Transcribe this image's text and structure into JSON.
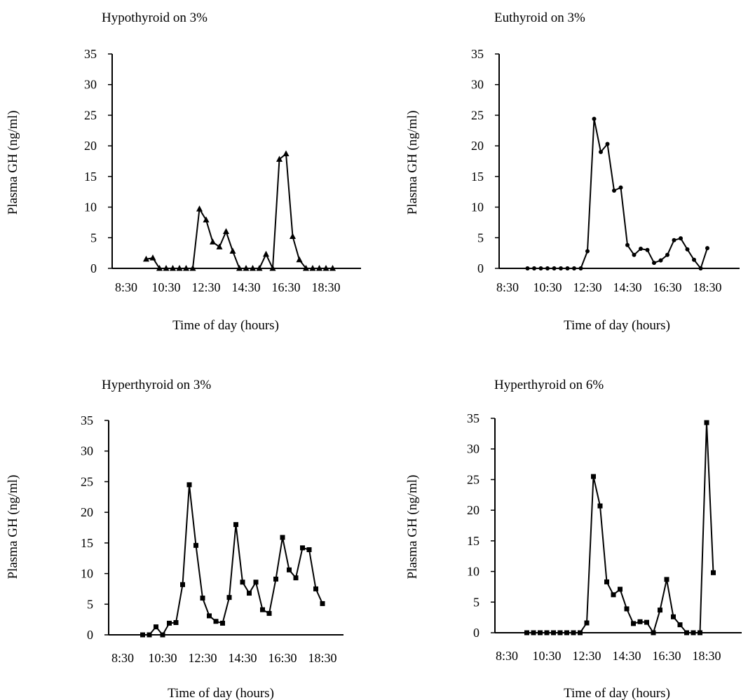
{
  "chart_data": [
    {
      "type": "line",
      "title": "Hypothyroid on 3%",
      "xlabel": "Time of day (hours)",
      "ylabel": "Plasma GH (ng/ml)",
      "ylim": [
        0,
        35
      ],
      "yticks": [
        "0",
        "5",
        "10",
        "15",
        "20",
        "25",
        "30",
        "35"
      ],
      "xticks": [
        "8:30",
        "10:30",
        "12:30",
        "14:30",
        "16:30",
        "18:30"
      ],
      "marker": "triangle",
      "series": [
        {
          "x": [
            "9:30",
            "9:50",
            "10:10",
            "10:30",
            "10:50",
            "11:10",
            "11:30",
            "11:50",
            "12:10",
            "12:30",
            "12:50",
            "13:10",
            "13:30",
            "13:50",
            "14:10",
            "14:30",
            "14:50",
            "15:10",
            "15:30",
            "15:50",
            "16:10",
            "16:30",
            "16:50",
            "17:10",
            "17:30",
            "17:50",
            "18:10",
            "18:30",
            "18:50"
          ],
          "values": [
            1.5,
            1.7,
            0,
            0,
            0,
            0,
            0,
            0,
            9.7,
            7.9,
            4.3,
            3.5,
            6.0,
            2.8,
            0,
            0,
            0,
            0,
            2.3,
            0,
            17.8,
            18.7,
            5.2,
            1.4,
            0,
            0,
            0,
            0,
            0
          ]
        }
      ]
    },
    {
      "type": "line",
      "title": "Euthyroid on 3%",
      "xlabel": "Time of day (hours)",
      "ylabel": "Plasma GH (ng/ml)",
      "ylim": [
        0,
        35
      ],
      "yticks": [
        "0",
        "5",
        "10",
        "15",
        "20",
        "25",
        "30",
        "35"
      ],
      "xticks": [
        "8:30",
        "10:30",
        "12:30",
        "14:30",
        "16:30",
        "18:30"
      ],
      "marker": "circle",
      "series": [
        {
          "x": [
            "9:30",
            "9:50",
            "10:10",
            "10:30",
            "10:50",
            "11:10",
            "11:30",
            "11:50",
            "12:10",
            "12:30",
            "12:50",
            "13:10",
            "13:30",
            "13:50",
            "14:10",
            "14:30",
            "14:50",
            "15:10",
            "15:30",
            "15:50",
            "16:10",
            "16:30",
            "16:50",
            "17:10",
            "17:30",
            "17:50",
            "18:10",
            "18:30"
          ],
          "values": [
            0,
            0,
            0,
            0,
            0,
            0,
            0,
            0,
            0,
            2.8,
            24.4,
            19.0,
            20.3,
            12.7,
            13.2,
            3.8,
            2.2,
            3.2,
            3.0,
            0.9,
            1.3,
            2.2,
            4.6,
            4.9,
            3.1,
            1.4,
            0,
            3.3
          ]
        }
      ]
    },
    {
      "type": "line",
      "title": "Hyperthyroid on 3%",
      "xlabel": "Time of day (hours)",
      "ylabel": "Plasma GH (ng/ml)",
      "ylim": [
        0,
        35
      ],
      "yticks": [
        "0",
        "5",
        "10",
        "15",
        "20",
        "25",
        "30",
        "35"
      ],
      "xticks": [
        "8:30",
        "10:30",
        "12:30",
        "14:30",
        "16:30",
        "18:30"
      ],
      "marker": "square",
      "series": [
        {
          "x": [
            "9:30",
            "9:50",
            "10:10",
            "10:30",
            "10:50",
            "11:10",
            "11:30",
            "11:50",
            "12:10",
            "12:30",
            "12:50",
            "13:10",
            "13:30",
            "13:50",
            "14:10",
            "14:30",
            "14:50",
            "15:10",
            "15:30",
            "15:50",
            "16:10",
            "16:30",
            "16:50",
            "17:10",
            "17:30",
            "17:50",
            "18:10",
            "18:30"
          ],
          "values": [
            0,
            0,
            1.3,
            0,
            1.9,
            2.0,
            8.2,
            24.5,
            14.6,
            6.0,
            3.1,
            2.2,
            1.9,
            6.1,
            18.0,
            8.6,
            6.8,
            8.6,
            4.1,
            3.5,
            9.1,
            15.9,
            10.6,
            9.3,
            14.2,
            13.9,
            7.5,
            5.1
          ]
        }
      ]
    },
    {
      "type": "line",
      "title": "Hyperthyroid on 6%",
      "xlabel": "Time of day (hours)",
      "ylabel": "Plasma GH (ng/ml)",
      "ylim": [
        0,
        35
      ],
      "yticks": [
        "0",
        "5",
        "10",
        "15",
        "20",
        "25",
        "30",
        "35"
      ],
      "xticks": [
        "8:30",
        "10:30",
        "12:30",
        "14:30",
        "16:30",
        "18:30"
      ],
      "marker": "square",
      "series": [
        {
          "x": [
            "9:30",
            "9:50",
            "10:10",
            "10:30",
            "10:50",
            "11:10",
            "11:30",
            "11:50",
            "12:10",
            "12:30",
            "12:50",
            "13:10",
            "13:30",
            "13:50",
            "14:10",
            "14:30",
            "14:50",
            "15:10",
            "15:30",
            "15:50",
            "16:10",
            "16:30",
            "16:50",
            "17:10",
            "17:30",
            "17:50",
            "18:10",
            "18:30",
            "18:50"
          ],
          "values": [
            0,
            0,
            0,
            0,
            0,
            0,
            0,
            0,
            0,
            1.6,
            25.5,
            20.7,
            8.3,
            6.2,
            7.1,
            3.9,
            1.5,
            1.8,
            1.7,
            0,
            3.7,
            8.7,
            2.6,
            1.3,
            0,
            0,
            0,
            34.3,
            9.8
          ]
        }
      ]
    }
  ]
}
